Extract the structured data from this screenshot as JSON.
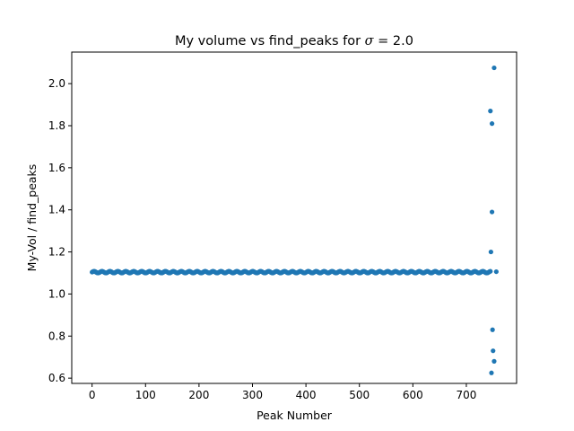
{
  "chart_data": {
    "type": "scatter",
    "title_prefix": "My volume vs find_peaks for ",
    "title_symbol": "σ",
    "title_suffix": " = 2.0",
    "xlabel": "Peak Number",
    "ylabel": "My-Vol / find_peaks",
    "xlim": [
      -38,
      794
    ],
    "ylim": [
      0.575,
      2.15
    ],
    "xticks": [
      0,
      100,
      200,
      300,
      400,
      500,
      600,
      700
    ],
    "yticks": [
      0.6,
      0.8,
      1.0,
      1.2,
      1.4,
      1.6,
      1.8,
      2.0
    ],
    "ytick_labels": [
      "0.6",
      "0.8",
      "1.0",
      "1.2",
      "1.4",
      "1.6",
      "1.8",
      "2.0"
    ],
    "grid": false,
    "marker_color": "#1f77b4",
    "series": [
      {
        "baseline": {
          "x_start": 0,
          "x_end": 745,
          "y_center": 1.104,
          "y_jitter": 0.004
        },
        "outliers": [
          {
            "x": 745,
            "y": 1.87
          },
          {
            "x": 748,
            "y": 1.81
          },
          {
            "x": 752,
            "y": 2.075
          },
          {
            "x": 748,
            "y": 1.39
          },
          {
            "x": 746,
            "y": 1.2
          },
          {
            "x": 749,
            "y": 0.83
          },
          {
            "x": 750,
            "y": 0.73
          },
          {
            "x": 752,
            "y": 0.68
          },
          {
            "x": 747,
            "y": 0.625
          },
          {
            "x": 756,
            "y": 1.106
          }
        ]
      }
    ]
  }
}
